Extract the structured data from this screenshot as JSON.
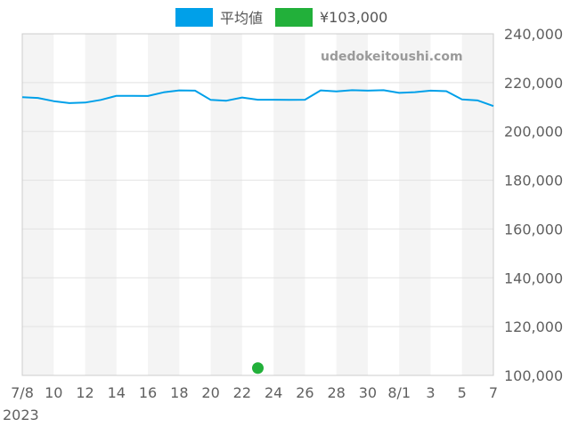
{
  "legend": [
    {
      "name": "平均値",
      "color": "#00a0e9"
    },
    {
      "name": "¥103,000",
      "color": "#22b03a"
    }
  ],
  "watermark": "udedokeitoushi.com",
  "chart_data": {
    "type": "line",
    "title": "",
    "xlabel": "",
    "ylabel": "",
    "x": [
      "2023-07-08",
      "2023-07-09",
      "2023-07-10",
      "2023-07-11",
      "2023-07-12",
      "2023-07-13",
      "2023-07-14",
      "2023-07-15",
      "2023-07-16",
      "2023-07-17",
      "2023-07-18",
      "2023-07-19",
      "2023-07-20",
      "2023-07-21",
      "2023-07-22",
      "2023-07-23",
      "2023-07-24",
      "2023-07-25",
      "2023-07-26",
      "2023-07-27",
      "2023-07-28",
      "2023-07-29",
      "2023-07-30",
      "2023-07-31",
      "2023-08-01",
      "2023-08-02",
      "2023-08-03",
      "2023-08-04",
      "2023-08-05",
      "2023-08-06",
      "2023-08-07"
    ],
    "series": [
      {
        "name": "平均値",
        "type": "line",
        "color": "#00a0e9",
        "values": [
          214000,
          213700,
          212400,
          211600,
          211800,
          212900,
          214600,
          214600,
          214500,
          216000,
          216800,
          216700,
          212900,
          212600,
          213900,
          213000,
          213000,
          212900,
          213000,
          216800,
          216400,
          216900,
          216700,
          216900,
          215800,
          216100,
          216700,
          216500,
          213100,
          212700,
          210400
        ]
      },
      {
        "name": "¥103,000",
        "type": "scatter",
        "color": "#22b03a",
        "points": [
          {
            "x": "2023-07-23",
            "y": 103000
          }
        ]
      }
    ],
    "ylim": [
      100000,
      240000
    ],
    "yticks": [
      "100,000",
      "120,000",
      "140,000",
      "160,000",
      "180,000",
      "200,000",
      "220,000",
      "240,000"
    ],
    "xticks": [
      {
        "x": "2023-07-08",
        "label": "7/8"
      },
      {
        "x": "2023-07-10",
        "label": "10"
      },
      {
        "x": "2023-07-12",
        "label": "12"
      },
      {
        "x": "2023-07-14",
        "label": "14"
      },
      {
        "x": "2023-07-16",
        "label": "16"
      },
      {
        "x": "2023-07-18",
        "label": "18"
      },
      {
        "x": "2023-07-20",
        "label": "20"
      },
      {
        "x": "2023-07-22",
        "label": "22"
      },
      {
        "x": "2023-07-24",
        "label": "24"
      },
      {
        "x": "2023-07-26",
        "label": "26"
      },
      {
        "x": "2023-07-28",
        "label": "28"
      },
      {
        "x": "2023-07-30",
        "label": "30"
      },
      {
        "x": "2023-08-01",
        "label": "8/1"
      },
      {
        "x": "2023-08-03",
        "label": "3"
      },
      {
        "x": "2023-08-05",
        "label": "5"
      },
      {
        "x": "2023-08-07",
        "label": "7"
      }
    ],
    "year_label": "2023",
    "grid": true,
    "alternating_bands": true,
    "legend_position": "top-center"
  }
}
